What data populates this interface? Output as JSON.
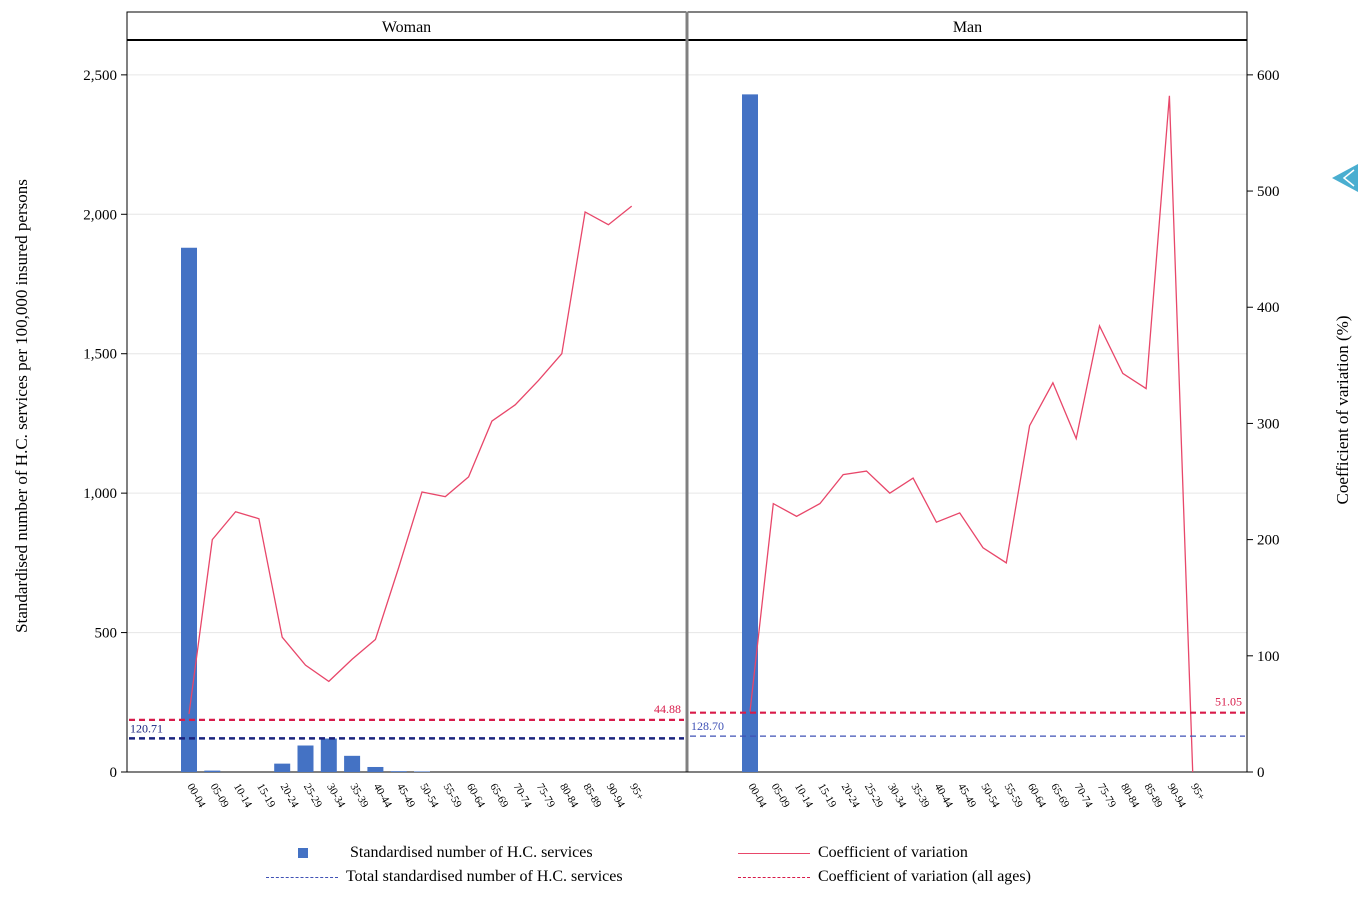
{
  "chart_data": {
    "type": "bar",
    "y_left_label": "Standardised number of H.C. services per 100,000 insured persons",
    "y_right_label": "Coefficient of variation (%)",
    "y_left_ticks": [
      "0",
      "500",
      "1,000",
      "1,500",
      "2,000",
      "2,500"
    ],
    "y_left_tick_values": [
      0,
      500,
      1000,
      1500,
      2000,
      2500
    ],
    "y_left_lim": [
      0,
      2500
    ],
    "y_right_ticks": [
      "0",
      "100",
      "200",
      "300",
      "400",
      "500",
      "600"
    ],
    "y_right_tick_values": [
      0,
      100,
      200,
      300,
      400,
      500,
      600
    ],
    "y_right_lim": [
      0,
      600
    ],
    "grid": true,
    "legend_position": "bottom",
    "categories": [
      "00-04",
      "05-09",
      "10-14",
      "15-19",
      "20-24",
      "25-29",
      "30-34",
      "35-39",
      "40-44",
      "45-49",
      "50-54",
      "55-59",
      "60-64",
      "65-69",
      "70-74",
      "75-79",
      "80-84",
      "85-89",
      "90-94",
      "95+"
    ],
    "panels": [
      {
        "title": "Woman",
        "bars": [
          1880,
          5,
          0,
          0,
          30,
          95,
          120,
          58,
          18,
          3,
          2,
          0,
          0,
          0,
          0,
          0,
          0,
          0,
          0,
          0
        ],
        "cv": [
          50,
          200,
          224,
          218,
          116,
          92,
          78,
          97,
          114,
          176,
          241,
          237,
          254,
          302,
          316,
          337,
          360,
          482,
          471,
          487
        ],
        "total_bar": 120.71,
        "total_bar_label": "120.71",
        "cv_all_ages": 44.88,
        "cv_all_ages_label": "44.88"
      },
      {
        "title": "Man",
        "bars": [
          2430,
          0,
          0,
          0,
          0,
          0,
          0,
          0,
          0,
          0,
          0,
          0,
          0,
          0,
          0,
          0,
          0,
          0,
          0,
          0
        ],
        "cv": [
          52,
          231,
          220,
          231,
          256,
          259,
          240,
          253,
          215,
          223,
          193,
          180,
          298,
          335,
          287,
          384,
          343,
          330,
          582,
          0
        ],
        "total_bar": 128.7,
        "total_bar_label": "128.70",
        "cv_all_ages": 51.05,
        "cv_all_ages_label": "51.05"
      }
    ],
    "series": [
      {
        "name": "Standardised number of H.C. services",
        "type": "bar",
        "axis": "left"
      },
      {
        "name": "Coefficient of variation",
        "type": "line",
        "axis": "right"
      },
      {
        "name": "Total standardised number of H.C. services",
        "type": "dashed-line",
        "axis": "left"
      },
      {
        "name": "Coefficient of variation (all ages)",
        "type": "dashed-line",
        "axis": "right"
      }
    ]
  },
  "legend": {
    "bar_label": "Standardised number of H.C. services",
    "cv_label": "Coefficient of variation",
    "total_label": "Total standardised number of H.C. services",
    "cv_all_label": "Coefficient of variation (all ages)"
  },
  "colors": {
    "bar": "#4472c4",
    "cv_line": "#e8476a",
    "cv_dash": "#d81b4a",
    "total_dash_woman": "#1a237e",
    "total_dash_man": "#3f51b5",
    "cyan_arrow": "#4aaed0"
  },
  "icons": {
    "side_nav": "chevron-left-icon"
  }
}
